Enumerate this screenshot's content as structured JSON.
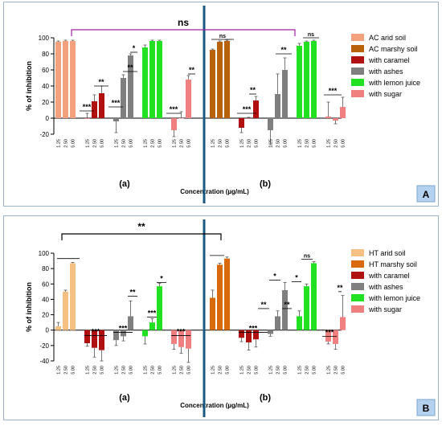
{
  "xlabel": "Concentration (µg/mL)",
  "ylabel": "% of inhibition",
  "concentrations": [
    "1.25",
    "2.50",
    "5.00"
  ],
  "colors": {
    "caramel": "#b01010",
    "ashes": "#7f7f7f",
    "lemon": "#22e022",
    "sugar": "#f08080",
    "bracket_a": "#a020a0",
    "divider": "#1a5a80",
    "panel_label_bg": "#b4d2ef"
  },
  "panels": [
    {
      "label": "A",
      "subplot_a_label": "(a)",
      "subplot_b_label": "(b)",
      "top_bracket_text": "ns",
      "legend": [
        {
          "label": "AC arid soil",
          "color": "#f3a07c"
        },
        {
          "label": "AC marshy soil",
          "color": "#b8620a"
        },
        {
          "label": "with caramel",
          "color": "#b01010"
        },
        {
          "label": "with ashes",
          "color": "#7f7f7f"
        },
        {
          "label": "with lemon juice",
          "color": "#22e022"
        },
        {
          "label": "with sugar",
          "color": "#f08080"
        }
      ],
      "annotations_a": [
        "***",
        "**",
        "***",
        "**",
        "*",
        "***",
        "**"
      ],
      "annotations_b": [
        "***",
        "**",
        "**",
        "ns",
        "***"
      ],
      "annotation_ns_a": "ns"
    },
    {
      "label": "B",
      "subplot_a_label": "(a)",
      "subplot_b_label": "(b)",
      "top_bracket_text": "**",
      "legend": [
        {
          "label": "HT arid soil",
          "color": "#f7c083"
        },
        {
          "label": "HT marshy soil",
          "color": "#d86a0c"
        },
        {
          "label": "with caramel",
          "color": "#b01010"
        },
        {
          "label": "with ashes",
          "color": "#7f7f7f"
        },
        {
          "label": "with lemon juice",
          "color": "#22e022"
        },
        {
          "label": "with sugar",
          "color": "#f08080"
        }
      ],
      "annotations_a": [
        "***",
        "***",
        "**",
        "***",
        "*",
        "***"
      ],
      "annotations_b": [
        "***",
        "**",
        "*",
        "**",
        "*",
        "ns",
        "***",
        "**"
      ]
    }
  ],
  "chart_data": [
    {
      "type": "bar",
      "panel": "A",
      "subplot": "(a)",
      "ylabel": "% of inhibition",
      "xlabel": "Concentration (µg/mL)",
      "ylim": [
        -20,
        100
      ],
      "yticks": [
        -20,
        0,
        20,
        40,
        60,
        80,
        100
      ],
      "categories": [
        "1.25",
        "2.50",
        "5.00"
      ],
      "series": [
        {
          "name": "AC arid soil",
          "color": "#f3a07c",
          "values": [
            95,
            96,
            96
          ],
          "errors": [
            1,
            1,
            1
          ]
        },
        {
          "name": "with caramel",
          "color": "#b01010",
          "values": [
            0,
            21,
            31
          ],
          "errors": [
            6,
            8,
            9
          ]
        },
        {
          "name": "with ashes",
          "color": "#7f7f7f",
          "values": [
            -4,
            50,
            78
          ],
          "errors": [
            14,
            4,
            2
          ]
        },
        {
          "name": "with lemon juice",
          "color": "#22e022",
          "values": [
            88,
            96,
            96
          ],
          "errors": [
            3,
            1,
            1
          ]
        },
        {
          "name": "with sugar",
          "color": "#f08080",
          "values": [
            -15,
            0,
            48
          ],
          "errors": [
            8,
            8,
            5
          ]
        }
      ]
    },
    {
      "type": "bar",
      "panel": "A",
      "subplot": "(b)",
      "ylim": [
        -20,
        100
      ],
      "categories": [
        "1.25",
        "2.50",
        "5.00"
      ],
      "series": [
        {
          "name": "AC marshy soil",
          "color": "#b8620a",
          "values": [
            85,
            95,
            96
          ],
          "errors": [
            1,
            1,
            1
          ]
        },
        {
          "name": "with caramel",
          "color": "#b01010",
          "values": [
            -12,
            0,
            22
          ],
          "errors": [
            6,
            1,
            5
          ]
        },
        {
          "name": "with ashes",
          "color": "#7f7f7f",
          "values": [
            -15,
            30,
            60
          ],
          "errors": [
            18,
            25,
            15
          ]
        },
        {
          "name": "with lemon juice",
          "color": "#22e022",
          "values": [
            90,
            95,
            96
          ],
          "errors": [
            3,
            1,
            1
          ]
        },
        {
          "name": "with sugar",
          "color": "#f08080",
          "values": [
            2,
            -3,
            14
          ],
          "errors": [
            18,
            4,
            12
          ]
        }
      ]
    },
    {
      "type": "bar",
      "panel": "B",
      "subplot": "(a)",
      "ylabel": "% of inhibition",
      "xlabel": "Concentration (µg/mL)",
      "ylim": [
        -40,
        100
      ],
      "yticks": [
        -40,
        -20,
        0,
        20,
        40,
        60,
        80,
        100
      ],
      "categories": [
        "1.25",
        "2.50",
        "5.00"
      ],
      "series": [
        {
          "name": "HT arid soil",
          "color": "#f7c083",
          "values": [
            5,
            50,
            87
          ],
          "errors": [
            5,
            2,
            1
          ]
        },
        {
          "name": "with caramel",
          "color": "#b01010",
          "values": [
            -17,
            -23,
            -26
          ],
          "errors": [
            4,
            12,
            14
          ]
        },
        {
          "name": "with ashes",
          "color": "#7f7f7f",
          "values": [
            -13,
            -8,
            18
          ],
          "errors": [
            7,
            6,
            20
          ]
        },
        {
          "name": "with lemon juice",
          "color": "#22e022",
          "values": [
            -8,
            10,
            57
          ],
          "errors": [
            10,
            5,
            4
          ]
        },
        {
          "name": "with sugar",
          "color": "#f08080",
          "values": [
            -18,
            -22,
            -24
          ],
          "errors": [
            7,
            8,
            18
          ]
        }
      ]
    },
    {
      "type": "bar",
      "panel": "B",
      "subplot": "(b)",
      "ylim": [
        -40,
        100
      ],
      "categories": [
        "1.25",
        "2.50",
        "5.00"
      ],
      "series": [
        {
          "name": "HT marshy soil",
          "color": "#d86a0c",
          "values": [
            42,
            85,
            93
          ],
          "errors": [
            10,
            2,
            2
          ]
        },
        {
          "name": "with caramel",
          "color": "#b01010",
          "values": [
            -10,
            -16,
            -12
          ],
          "errors": [
            5,
            10,
            10
          ]
        },
        {
          "name": "with ashes",
          "color": "#7f7f7f",
          "values": [
            -5,
            18,
            52
          ],
          "errors": [
            3,
            7,
            10
          ]
        },
        {
          "name": "with lemon juice",
          "color": "#22e022",
          "values": [
            18,
            57,
            87
          ],
          "errors": [
            7,
            3,
            2
          ]
        },
        {
          "name": "with sugar",
          "color": "#f08080",
          "values": [
            -15,
            -18,
            17
          ],
          "errors": [
            3,
            7,
            28
          ]
        }
      ]
    }
  ]
}
